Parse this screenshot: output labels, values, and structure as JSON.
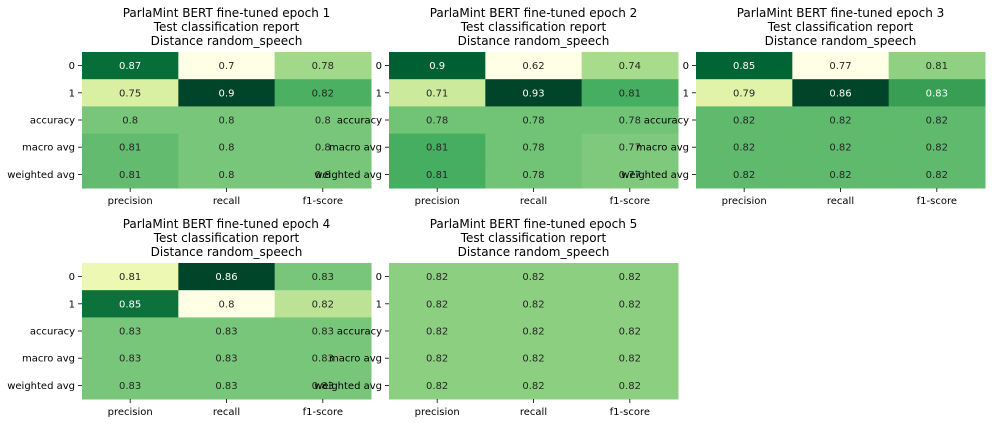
{
  "chart_data": [
    {
      "type": "heatmap",
      "title": [
        "ParlaMint BERT fine-tuned epoch 1",
        "Test classification report",
        "Distance random_speech"
      ],
      "rows": [
        "0",
        "1",
        "accuracy",
        "macro avg",
        "weighted avg"
      ],
      "columns": [
        "precision",
        "recall",
        "f1-score"
      ],
      "values": [
        [
          0.87,
          0.7,
          0.78
        ],
        [
          0.75,
          0.9,
          0.82
        ],
        [
          0.8,
          0.8,
          0.8
        ],
        [
          0.81,
          0.8,
          0.8
        ],
        [
          0.81,
          0.8,
          0.8
        ]
      ],
      "labels": [
        [
          "0.87",
          "0.7",
          "0.78"
        ],
        [
          "0.75",
          "0.9",
          "0.82"
        ],
        [
          "0.8",
          "0.8",
          "0.8"
        ],
        [
          "0.81",
          "0.8",
          "0.8"
        ],
        [
          "0.81",
          "0.8",
          "0.8"
        ]
      ],
      "colormap": "Greens"
    },
    {
      "type": "heatmap",
      "title": [
        "ParlaMint BERT fine-tuned epoch 2",
        "Test classification report",
        "Distance random_speech"
      ],
      "rows": [
        "0",
        "1",
        "accuracy",
        "macro avg",
        "weighted avg"
      ],
      "columns": [
        "precision",
        "recall",
        "f1-score"
      ],
      "values": [
        [
          0.9,
          0.62,
          0.74
        ],
        [
          0.71,
          0.93,
          0.81
        ],
        [
          0.78,
          0.78,
          0.78
        ],
        [
          0.81,
          0.78,
          0.77
        ],
        [
          0.81,
          0.78,
          0.77
        ]
      ],
      "labels": [
        [
          "0.9",
          "0.62",
          "0.74"
        ],
        [
          "0.71",
          "0.93",
          "0.81"
        ],
        [
          "0.78",
          "0.78",
          "0.78"
        ],
        [
          "0.81",
          "0.78",
          "0.77"
        ],
        [
          "0.81",
          "0.78",
          "0.77"
        ]
      ],
      "colormap": "Greens"
    },
    {
      "type": "heatmap",
      "title": [
        "ParlaMint BERT fine-tuned epoch 3",
        "Test classification report",
        "Distance random_speech"
      ],
      "rows": [
        "0",
        "1",
        "accuracy",
        "macro avg",
        "weighted avg"
      ],
      "columns": [
        "precision",
        "recall",
        "f1-score"
      ],
      "values": [
        [
          0.85,
          0.77,
          0.81
        ],
        [
          0.79,
          0.86,
          0.83
        ],
        [
          0.82,
          0.82,
          0.82
        ],
        [
          0.82,
          0.82,
          0.82
        ],
        [
          0.82,
          0.82,
          0.82
        ]
      ],
      "labels": [
        [
          "0.85",
          "0.77",
          "0.81"
        ],
        [
          "0.79",
          "0.86",
          "0.83"
        ],
        [
          "0.82",
          "0.82",
          "0.82"
        ],
        [
          "0.82",
          "0.82",
          "0.82"
        ],
        [
          "0.82",
          "0.82",
          "0.82"
        ]
      ],
      "colormap": "Greens"
    },
    {
      "type": "heatmap",
      "title": [
        "ParlaMint BERT fine-tuned epoch 4",
        "Test classification report",
        "Distance random_speech"
      ],
      "rows": [
        "0",
        "1",
        "accuracy",
        "macro avg",
        "weighted avg"
      ],
      "columns": [
        "precision",
        "recall",
        "f1-score"
      ],
      "values": [
        [
          0.81,
          0.86,
          0.83
        ],
        [
          0.85,
          0.8,
          0.82
        ],
        [
          0.83,
          0.83,
          0.83
        ],
        [
          0.83,
          0.83,
          0.83
        ],
        [
          0.83,
          0.83,
          0.83
        ]
      ],
      "labels": [
        [
          "0.81",
          "0.86",
          "0.83"
        ],
        [
          "0.85",
          "0.8",
          "0.82"
        ],
        [
          "0.83",
          "0.83",
          "0.83"
        ],
        [
          "0.83",
          "0.83",
          "0.83"
        ],
        [
          "0.83",
          "0.83",
          "0.83"
        ]
      ],
      "colormap": "Greens"
    },
    {
      "type": "heatmap",
      "title": [
        "ParlaMint BERT fine-tuned epoch 5",
        "Test classification report",
        "Distance random_speech"
      ],
      "rows": [
        "0",
        "1",
        "accuracy",
        "macro avg",
        "weighted avg"
      ],
      "columns": [
        "precision",
        "recall",
        "f1-score"
      ],
      "values": [
        [
          0.82,
          0.82,
          0.82
        ],
        [
          0.82,
          0.82,
          0.82
        ],
        [
          0.82,
          0.82,
          0.82
        ],
        [
          0.82,
          0.82,
          0.82
        ],
        [
          0.82,
          0.82,
          0.82
        ]
      ],
      "labels": [
        [
          "0.82",
          "0.82",
          "0.82"
        ],
        [
          "0.82",
          "0.82",
          "0.82"
        ],
        [
          "0.82",
          "0.82",
          "0.82"
        ],
        [
          "0.82",
          "0.82",
          "0.82"
        ],
        [
          "0.82",
          "0.82",
          "0.82"
        ]
      ],
      "colormap": "Greens"
    }
  ]
}
